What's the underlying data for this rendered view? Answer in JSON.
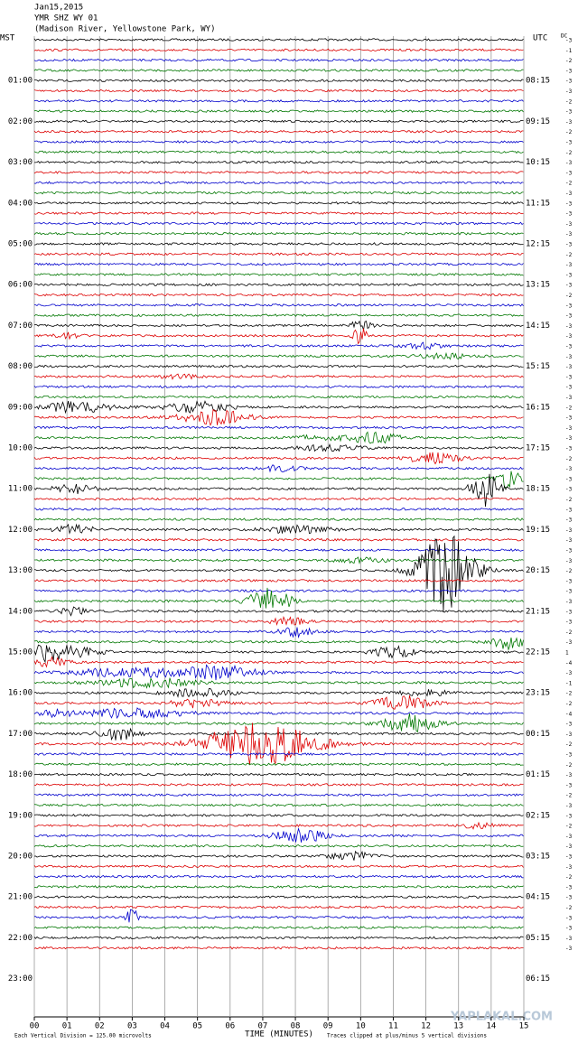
{
  "header": {
    "lines": [
      "Jan15,2015",
      "YMR SHZ WY 01",
      "(Madison River, Yellowstone Park, WY)"
    ]
  },
  "left_axis": {
    "label": "MST",
    "hours": [
      "01:00",
      "02:00",
      "03:00",
      "04:00",
      "05:00",
      "06:00",
      "07:00",
      "08:00",
      "09:00",
      "10:00",
      "11:00",
      "12:00",
      "13:00",
      "14:00",
      "15:00",
      "16:00",
      "17:00",
      "18:00",
      "19:00",
      "20:00",
      "21:00",
      "22:00",
      "23:00"
    ]
  },
  "right_axis": {
    "label": "UTC",
    "hours": [
      "08:15",
      "09:15",
      "10:15",
      "11:15",
      "12:15",
      "13:15",
      "14:15",
      "15:15",
      "16:15",
      "17:15",
      "18:15",
      "19:15",
      "20:15",
      "21:15",
      "22:15",
      "23:15",
      "00:15",
      "01:15",
      "02:15",
      "03:15",
      "04:15",
      "05:15",
      "06:15"
    ]
  },
  "dc": {
    "label": "DC",
    "offsets": [
      "-3",
      "-1",
      "-2",
      "-3",
      "-3",
      "-3",
      "-2",
      "-3",
      "-3",
      "-2",
      "-3",
      "-2",
      "-3",
      "-3",
      "-2",
      "-3",
      "-3",
      "-3",
      "-3",
      "-3",
      "-3",
      "-2",
      "-3",
      "-3",
      "-3",
      "-2",
      "-3",
      "-3",
      "-3",
      "-3",
      "-3",
      "-3",
      "-3",
      "-3",
      "-3",
      "-3",
      "-2",
      "-3",
      "-3",
      "-3",
      "-3",
      "-2",
      "-3",
      "-3",
      "-3",
      "-2",
      "-3",
      "-3",
      "-3",
      "-3",
      "-3",
      "-3",
      "-2",
      "-3",
      "-3",
      "-3",
      "-3",
      "-3",
      "-2",
      "-3",
      "1",
      "-4",
      "-3",
      "-1",
      "-2",
      "-2",
      "-4",
      "-3",
      "-3",
      "-2",
      "-3",
      "-2",
      "-3",
      "-3",
      "-2",
      "-3",
      "-3",
      "-2",
      "-3",
      "-3",
      "-3",
      "-3",
      "-2",
      "-3",
      "-3",
      "-2",
      "-3",
      "-3",
      "-3",
      "-3"
    ]
  },
  "x_axis": {
    "ticks": [
      "00",
      "01",
      "02",
      "03",
      "04",
      "05",
      "06",
      "07",
      "08",
      "09",
      "10",
      "11",
      "12",
      "13",
      "14",
      "15"
    ],
    "title": "TIME (MINUTES)"
  },
  "footer": {
    "left": "Each Vertical Division = 125.00 microvolts",
    "right": "Traces clipped at plus/minus 5 vertical divisions"
  },
  "watermark": "YAPLAKAL.COM"
}
